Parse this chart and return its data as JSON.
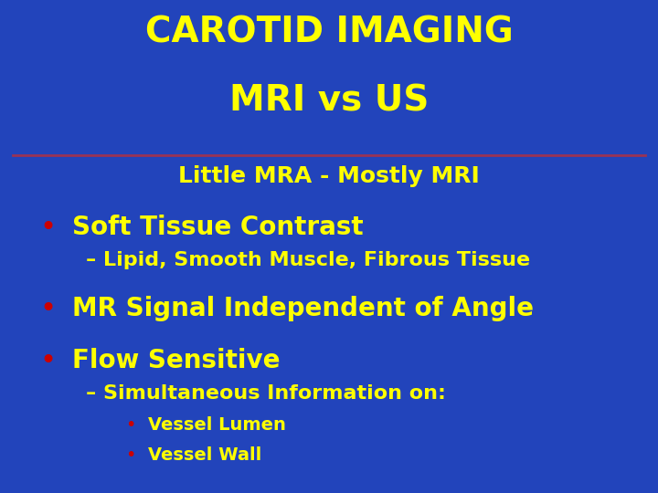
{
  "background_color": "#2244BB",
  "title_line1": "CAROTID IMAGING",
  "title_line2": "MRI vs US",
  "title_color": "#FFFF00",
  "title_fontsize": 28,
  "separator_color": "#993355",
  "subtitle": "Little MRA - Mostly MRI",
  "subtitle_color": "#FFFF00",
  "subtitle_fontsize": 18,
  "bullet_color": "#CC0000",
  "text_color": "#FFFF00",
  "bullet1": "Soft Tissue Contrast",
  "bullet1_fontsize": 20,
  "sub_bullet1": "– Lipid, Smooth Muscle, Fibrous Tissue",
  "sub_bullet1_fontsize": 16,
  "bullet2": "MR Signal Independent of Angle",
  "bullet2_fontsize": 20,
  "bullet3": "Flow Sensitive",
  "bullet3_fontsize": 20,
  "sub_bullet3": "– Simultaneous Information on:",
  "sub_bullet3_fontsize": 16,
  "sub_sub_bullet3a": "Vessel Lumen",
  "sub_sub_bullet3b": "Vessel Wall",
  "sub_sub_fontsize": 14
}
